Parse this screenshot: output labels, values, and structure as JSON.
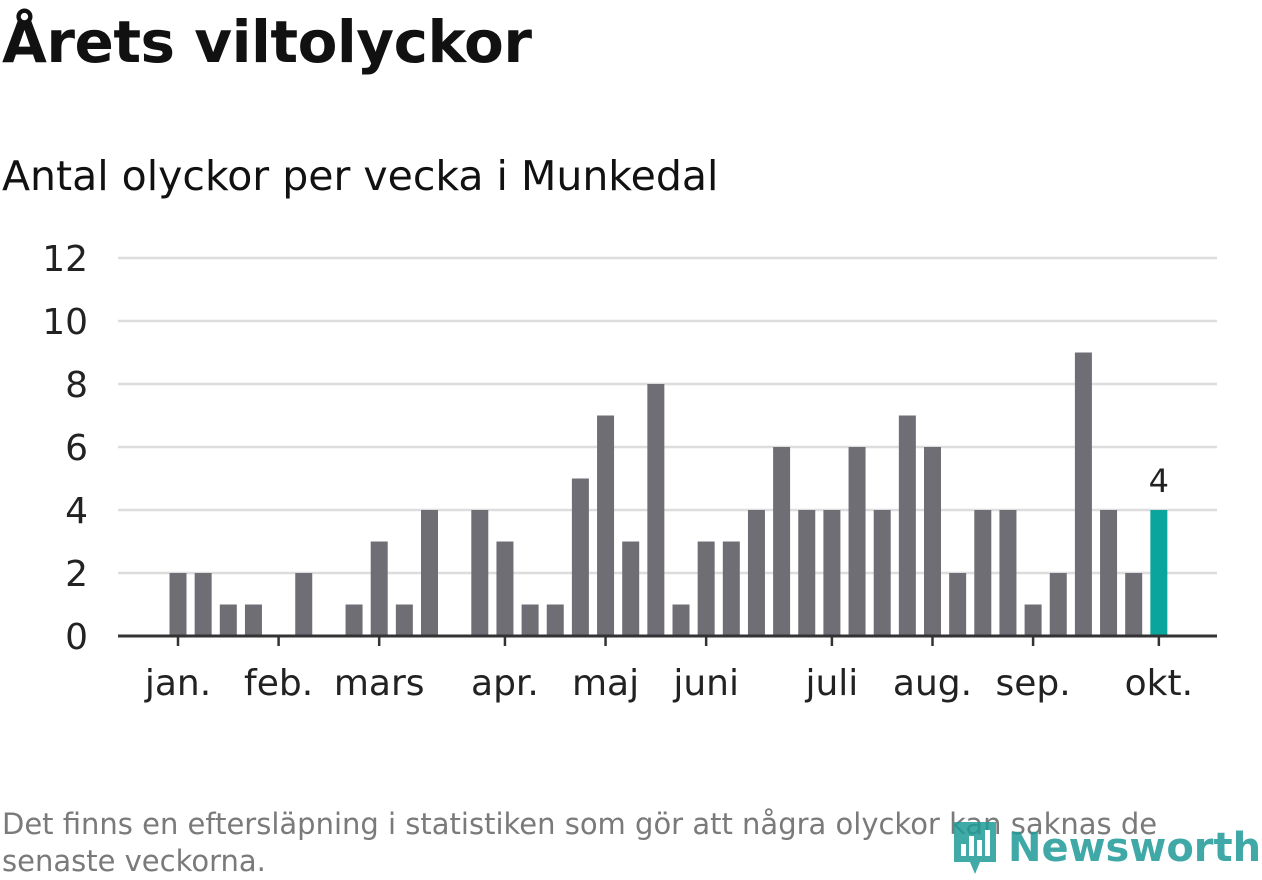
{
  "title": "Årets viltolyckor",
  "subtitle": "Antal olyckor per vecka i Munkedal",
  "footnote": "Det finns en eftersläpning i statistiken som gör att några olyckor kan saknas de senaste veckorna.",
  "logo_text": "Newsworthy",
  "colors": {
    "bar": "#6f6e74",
    "highlight": "#0aa59c",
    "grid": "#dddddd",
    "axis": "#333333",
    "logo": "#1f9b98"
  },
  "chart_data": {
    "type": "bar",
    "x": [
      1,
      2,
      3,
      4,
      5,
      6,
      7,
      8,
      9,
      10,
      11,
      12,
      13,
      14,
      15,
      16,
      17,
      18,
      19,
      20,
      21,
      22,
      23,
      24,
      25,
      26,
      27,
      28,
      29,
      30,
      31,
      32,
      33,
      34,
      35,
      36,
      37,
      38,
      39,
      40
    ],
    "values": [
      2,
      2,
      1,
      1,
      0,
      2,
      0,
      1,
      3,
      1,
      4,
      0,
      4,
      3,
      1,
      1,
      5,
      7,
      3,
      8,
      1,
      3,
      3,
      4,
      6,
      4,
      4,
      6,
      4,
      7,
      6,
      2,
      4,
      4,
      1,
      2,
      9,
      4,
      2,
      4
    ],
    "highlight_index": 39,
    "highlight_label": "4",
    "month_labels": [
      {
        "label": "jan.",
        "week": 1
      },
      {
        "label": "feb.",
        "week": 5
      },
      {
        "label": "mars",
        "week": 9
      },
      {
        "label": "apr.",
        "week": 14
      },
      {
        "label": "maj",
        "week": 18
      },
      {
        "label": "juni",
        "week": 22
      },
      {
        "label": "juli",
        "week": 27
      },
      {
        "label": "aug.",
        "week": 31
      },
      {
        "label": "sep.",
        "week": 35
      },
      {
        "label": "okt.",
        "week": 40
      }
    ],
    "yticks": [
      0,
      2,
      4,
      6,
      8,
      10,
      12
    ],
    "ylim": [
      0,
      12
    ],
    "grid": true
  }
}
